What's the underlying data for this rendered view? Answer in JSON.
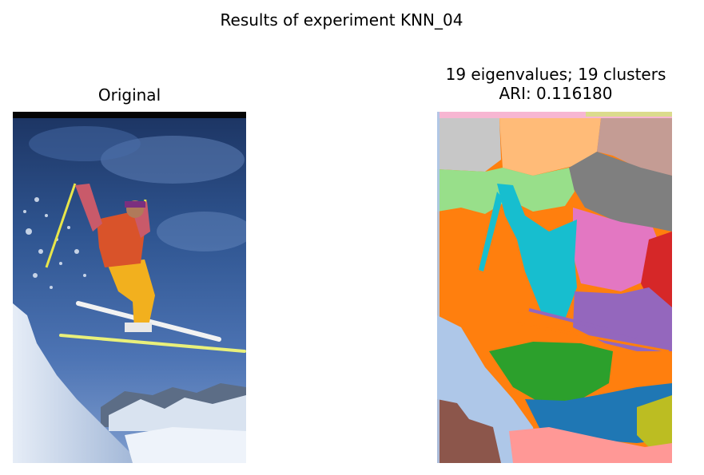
{
  "figure": {
    "suptitle": "Results of experiment KNN_04"
  },
  "panels": {
    "original": {
      "title": "Original"
    },
    "segmentation": {
      "title_line1": "19 eigenvalues; 19 clusters",
      "title_line2": "ARI: 0.116180",
      "eigenvalues": 19,
      "clusters": 19,
      "ari": 0.11618
    }
  },
  "colors": {
    "sky_dark": "#1f3a6a",
    "sky_mid": "#3c64a4",
    "jacket": "#d9532a",
    "pants": "#f2b01e",
    "snow": "#c8d6ea",
    "tab_blue": "#1f77b4",
    "tab_orange": "#ff7f0e",
    "tab_green": "#2ca02c",
    "tab_red": "#d62728",
    "tab_purple": "#9467bd",
    "tab_brown": "#8c564b",
    "tab_pink": "#e377c2",
    "tab_gray": "#7f7f7f",
    "tab_olive": "#bcbd22",
    "tab_cyan": "#17becf",
    "light_blue": "#aec7e8",
    "light_orange": "#ffbb78",
    "light_green": "#98df8a",
    "light_red": "#ff9896",
    "light_brown": "#c49c94",
    "light_pink": "#f7b6d2",
    "light_gray": "#c7c7c7",
    "light_olive": "#dbdb8d"
  }
}
